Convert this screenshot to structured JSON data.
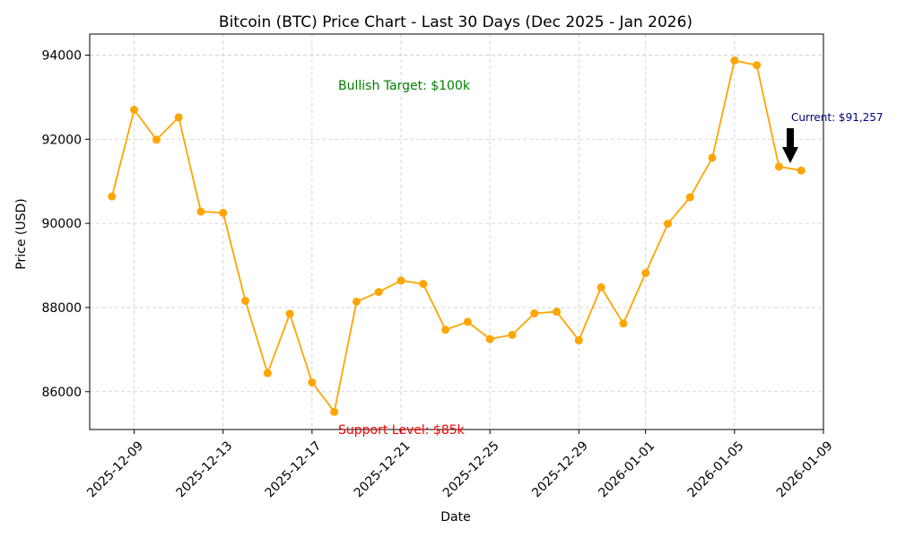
{
  "chart_data": {
    "type": "line",
    "title": "Bitcoin (BTC) Price Chart - Last 30 Days (Dec 2025 - Jan 2026)",
    "xlabel": "Date",
    "ylabel": "Price (USD)",
    "x_ticks": [
      "2025-12-09",
      "2025-12-13",
      "2025-12-17",
      "2025-12-21",
      "2025-12-25",
      "2025-12-29",
      "2026-01-01",
      "2026-01-05",
      "2026-01-09"
    ],
    "y_ticks": [
      86000,
      88000,
      90000,
      92000,
      94000
    ],
    "ylim": [
      85100,
      94500
    ],
    "xlim": [
      "2025-12-07",
      "2026-01-09"
    ],
    "grid": true,
    "line_color": "#FFA500",
    "x": [
      "2025-12-08",
      "2025-12-09",
      "2025-12-10",
      "2025-12-11",
      "2025-12-12",
      "2025-12-13",
      "2025-12-14",
      "2025-12-15",
      "2025-12-16",
      "2025-12-17",
      "2025-12-18",
      "2025-12-19",
      "2025-12-20",
      "2025-12-21",
      "2025-12-22",
      "2025-12-23",
      "2025-12-24",
      "2025-12-25",
      "2025-12-26",
      "2025-12-27",
      "2025-12-28",
      "2025-12-29",
      "2025-12-30",
      "2025-12-31",
      "2026-01-01",
      "2026-01-02",
      "2026-01-03",
      "2026-01-04",
      "2026-01-05",
      "2026-01-06",
      "2026-01-07",
      "2026-01-08"
    ],
    "values": [
      90640,
      92700,
      91990,
      92520,
      90280,
      90250,
      88160,
      86440,
      87850,
      86220,
      85520,
      88140,
      88370,
      88640,
      88560,
      87470,
      87660,
      87250,
      87350,
      87860,
      87900,
      87220,
      88480,
      87620,
      88820,
      89990,
      90620,
      91560,
      93870,
      93760,
      91350,
      91257
    ],
    "annotations": [
      {
        "text": "Bullish Target: $100k",
        "color": "#008000"
      },
      {
        "text": "Support Level: $85k",
        "color": "#FF0000"
      },
      {
        "text": "Current: $91,257",
        "color": "#000080"
      }
    ]
  }
}
